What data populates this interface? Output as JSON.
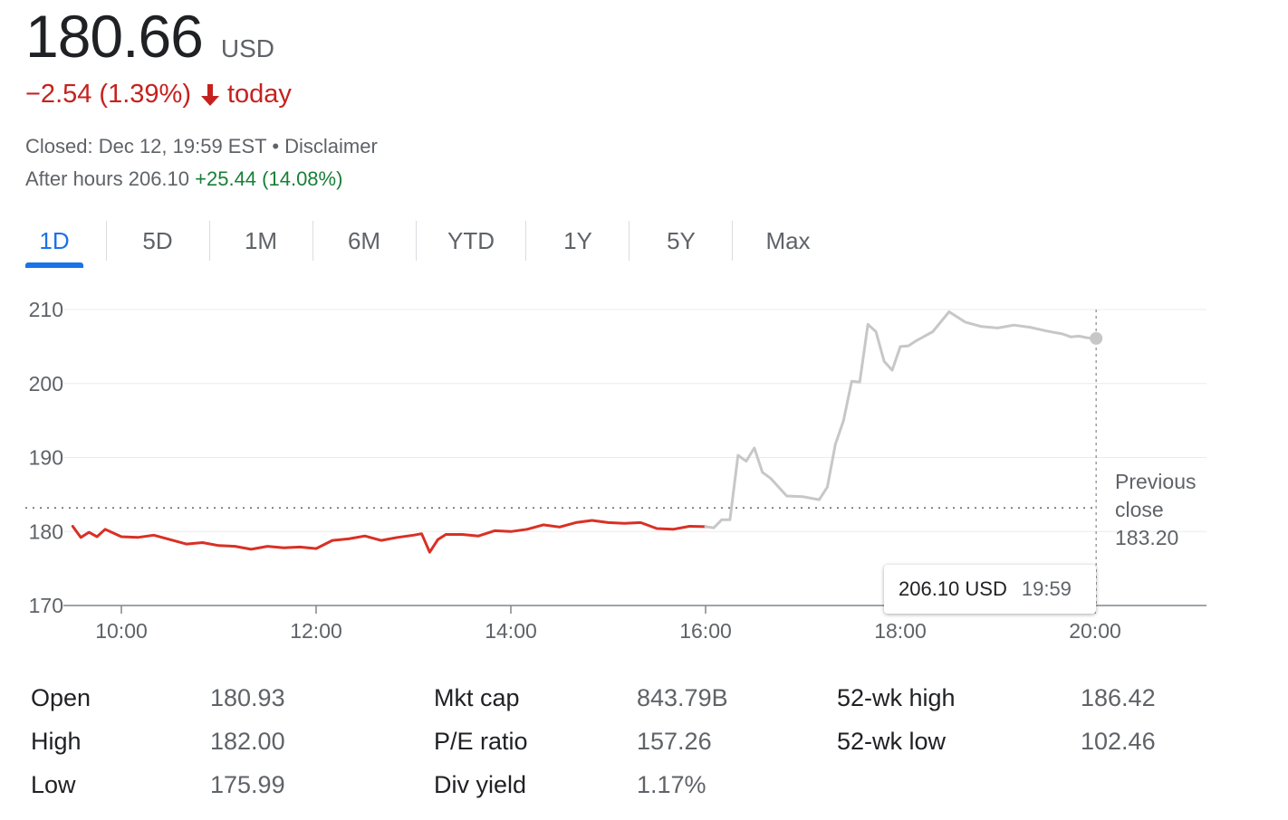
{
  "quote": {
    "price": "180.66",
    "currency": "USD",
    "change": "−2.54 (1.39%)",
    "change_period": "today",
    "closed_text": "Closed: Dec 12, 19:59 EST",
    "separator": " • ",
    "disclaimer": "Disclaimer",
    "after_hours_label": "After hours 206.10",
    "after_hours_change": "+25.44 (14.08%)",
    "colors": {
      "down": "#c5221f",
      "up": "#188038",
      "accent": "#1a73e8"
    }
  },
  "tabs": [
    "1D",
    "5D",
    "1M",
    "6M",
    "YTD",
    "1Y",
    "5Y",
    "Max"
  ],
  "active_tab": "1D",
  "tooltip": {
    "value": "206.10 USD",
    "time": "19:59"
  },
  "chart_data": {
    "type": "line",
    "ylim": [
      170,
      210
    ],
    "yticks": [
      "210",
      "200",
      "190",
      "180",
      "170"
    ],
    "xticks": [
      "10:00",
      "12:00",
      "14:00",
      "16:00",
      "18:00",
      "20:00"
    ],
    "grid": true,
    "previous_close": {
      "value": 183.2,
      "label_lines": [
        "Previous",
        "close",
        "183.20"
      ]
    },
    "series": [
      {
        "session": "regular",
        "color": "#d93025",
        "x": [
          "09:30",
          "09:35",
          "09:40",
          "09:45",
          "09:50",
          "09:55",
          "10:00",
          "10:10",
          "10:20",
          "10:30",
          "10:40",
          "10:50",
          "11:00",
          "11:10",
          "11:20",
          "11:30",
          "11:40",
          "11:50",
          "12:00",
          "12:10",
          "12:20",
          "12:30",
          "12:40",
          "12:50",
          "13:00",
          "13:05",
          "13:10",
          "13:15",
          "13:20",
          "13:30",
          "13:40",
          "13:50",
          "14:00",
          "14:10",
          "14:20",
          "14:30",
          "14:40",
          "14:50",
          "15:00",
          "15:10",
          "15:20",
          "15:30",
          "15:40",
          "15:50",
          "16:00"
        ],
        "values": [
          180.7,
          179.2,
          179.9,
          179.3,
          180.3,
          179.8,
          179.3,
          179.2,
          179.5,
          178.9,
          178.3,
          178.5,
          178.1,
          178.0,
          177.6,
          178.0,
          177.8,
          177.9,
          177.7,
          178.8,
          179.0,
          179.4,
          178.8,
          179.2,
          179.5,
          179.7,
          177.2,
          178.9,
          179.6,
          179.6,
          179.4,
          180.1,
          180.0,
          180.3,
          180.9,
          180.6,
          181.2,
          181.5,
          181.2,
          181.1,
          181.2,
          180.4,
          180.3,
          180.7,
          180.66
        ]
      },
      {
        "session": "after-hours",
        "color": "#c7c7c7",
        "x": [
          "16:00",
          "16:05",
          "16:10",
          "16:15",
          "16:20",
          "16:25",
          "16:30",
          "16:35",
          "16:40",
          "16:50",
          "17:00",
          "17:10",
          "17:15",
          "17:20",
          "17:25",
          "17:30",
          "17:35",
          "17:40",
          "17:45",
          "17:50",
          "17:55",
          "18:00",
          "18:05",
          "18:10",
          "18:20",
          "18:30",
          "18:40",
          "18:50",
          "19:00",
          "19:10",
          "19:20",
          "19:30",
          "19:40",
          "19:45",
          "19:50",
          "19:55",
          "19:59"
        ],
        "values": [
          180.66,
          180.5,
          181.6,
          181.6,
          190.3,
          189.5,
          191.3,
          188.0,
          187.2,
          184.8,
          184.7,
          184.3,
          186.0,
          191.8,
          195.0,
          200.3,
          200.2,
          208.0,
          207.0,
          203.0,
          201.8,
          205.0,
          205.1,
          205.8,
          207.0,
          209.7,
          208.3,
          207.7,
          207.5,
          207.9,
          207.6,
          207.1,
          206.7,
          206.3,
          206.4,
          206.2,
          206.1
        ]
      }
    ]
  },
  "stats": [
    {
      "label": "Open",
      "value": "180.93"
    },
    {
      "label": "High",
      "value": "182.00"
    },
    {
      "label": "Low",
      "value": "175.99"
    },
    {
      "label": "Mkt cap",
      "value": "843.79B"
    },
    {
      "label": "P/E ratio",
      "value": "157.26"
    },
    {
      "label": "Div yield",
      "value": "1.17%"
    },
    {
      "label": "52-wk high",
      "value": "186.42"
    },
    {
      "label": "52-wk low",
      "value": "102.46"
    }
  ]
}
